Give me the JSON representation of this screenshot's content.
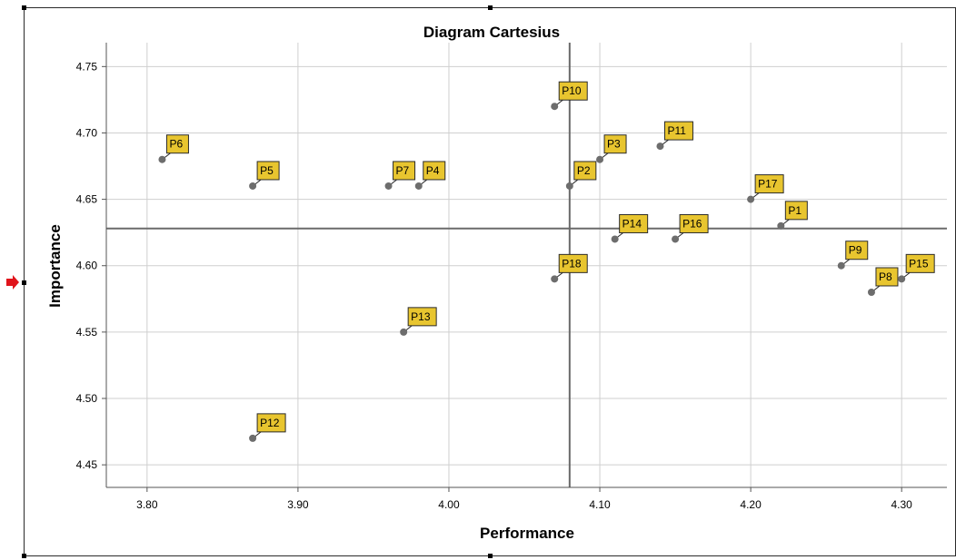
{
  "chart_data": {
    "type": "scatter",
    "title": "Diagram Cartesius",
    "xlabel": "Performance",
    "ylabel": "Importance",
    "xlim": [
      3.773,
      4.33
    ],
    "ylim": [
      4.433,
      4.768
    ],
    "xticks": [
      "3.80",
      "3.90",
      "4.00",
      "4.10",
      "4.20",
      "4.30"
    ],
    "yticks": [
      "4.45",
      "4.50",
      "4.55",
      "4.60",
      "4.65",
      "4.70",
      "4.75"
    ],
    "grid": true,
    "reference_lines": {
      "x": 4.08,
      "y": 4.628
    },
    "points": [
      {
        "label": "P1",
        "x": 4.22,
        "y": 4.63
      },
      {
        "label": "P2",
        "x": 4.08,
        "y": 4.66
      },
      {
        "label": "P3",
        "x": 4.1,
        "y": 4.68
      },
      {
        "label": "P4",
        "x": 3.98,
        "y": 4.66
      },
      {
        "label": "P5",
        "x": 3.87,
        "y": 4.66
      },
      {
        "label": "P6",
        "x": 3.81,
        "y": 4.68
      },
      {
        "label": "P7",
        "x": 3.96,
        "y": 4.66
      },
      {
        "label": "P8",
        "x": 4.28,
        "y": 4.58
      },
      {
        "label": "P9",
        "x": 4.26,
        "y": 4.6
      },
      {
        "label": "P10",
        "x": 4.07,
        "y": 4.72
      },
      {
        "label": "P11",
        "x": 4.14,
        "y": 4.69
      },
      {
        "label": "P12",
        "x": 3.87,
        "y": 4.47
      },
      {
        "label": "P13",
        "x": 3.97,
        "y": 4.55
      },
      {
        "label": "P14",
        "x": 4.11,
        "y": 4.62
      },
      {
        "label": "P15",
        "x": 4.3,
        "y": 4.59
      },
      {
        "label": "P16",
        "x": 4.15,
        "y": 4.62
      },
      {
        "label": "P17",
        "x": 4.2,
        "y": 4.65
      },
      {
        "label": "P18",
        "x": 4.07,
        "y": 4.59
      }
    ],
    "colors": {
      "point": "#6d6d6d",
      "label_bg": "#e8c52f",
      "label_border": "#2b2b2b",
      "grid": "#cfcfcf",
      "reference": "#6a6a6a"
    }
  },
  "ui": {
    "selection_arrow_icon": "red-arrow-icon"
  }
}
